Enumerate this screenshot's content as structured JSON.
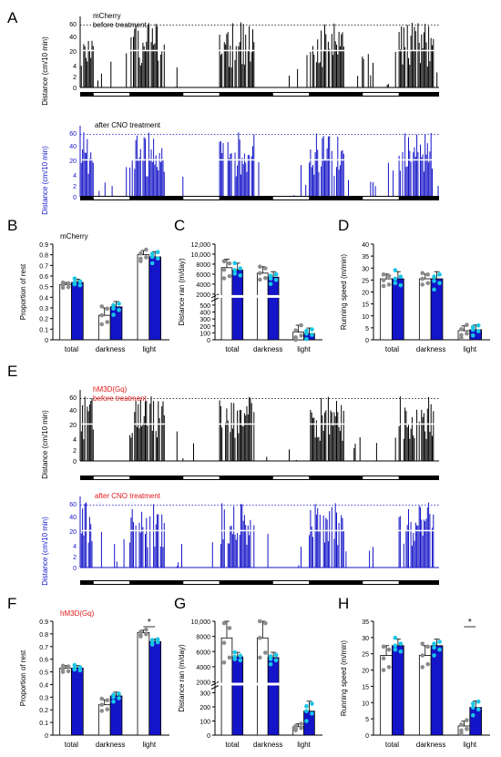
{
  "colors": {
    "black": "#000000",
    "blue": "#1414c8",
    "cyan": "#19c6e6",
    "gray": "#8c8c8c",
    "red": "#e01818"
  },
  "panels": {
    "A": "A",
    "B": "B",
    "C": "C",
    "D": "D",
    "E": "E",
    "F": "F",
    "G": "G",
    "H": "H"
  },
  "chart_data": [
    {
      "type": "area",
      "panel": "A",
      "ylabel": "Distance (cm/10 min)",
      "yticks": [
        "0",
        "2",
        "4",
        "20",
        "40",
        "60"
      ],
      "traces": [
        {
          "label": "mCherry",
          "label2": "before treatment",
          "color": "black"
        },
        {
          "label": "after CNO treatment",
          "label2": "",
          "color": "blue"
        }
      ],
      "light_dark_cycles": 4
    },
    {
      "type": "bar",
      "panel": "B",
      "label": "mCherry",
      "ylabel": "Proportion of rest",
      "categories": [
        "total",
        "darkness",
        "light"
      ],
      "ylim": [
        0,
        0.9
      ],
      "yticks": [
        "0",
        "0.1",
        "0.2",
        "0.3",
        "0.4",
        "0.5",
        "0.6",
        "0.7",
        "0.8",
        "0.9"
      ],
      "series": [
        {
          "values": [
            0.52,
            0.23,
            0.8
          ],
          "errors": [
            0.02,
            0.07,
            0.04
          ]
        },
        {
          "values": [
            0.54,
            0.31,
            0.78
          ],
          "errors": [
            0.03,
            0.05,
            0.05
          ]
        }
      ]
    },
    {
      "type": "bar",
      "panel": "C",
      "ylabel": "Distance ran (m/day)",
      "categories": [
        "total",
        "darkness",
        "light"
      ],
      "yticks_upper": [
        "2000",
        "4000",
        "6000",
        "8000",
        "10,000",
        "12,000"
      ],
      "yticks_lower": [
        "0",
        "100",
        "200",
        "300",
        "400",
        "500"
      ],
      "series": [
        {
          "values": [
            7300,
            6200,
            110
          ],
          "errors": [
            1700,
            1300,
            100
          ]
        },
        {
          "values": [
            6800,
            5400,
            90
          ],
          "errors": [
            1400,
            1100,
            80
          ]
        }
      ]
    },
    {
      "type": "bar",
      "panel": "D",
      "ylabel": "Running speed (m/min)",
      "categories": [
        "total",
        "darkness",
        "light"
      ],
      "ylim": [
        0,
        40
      ],
      "yticks": [
        "0",
        "5",
        "10",
        "15",
        "20",
        "25",
        "30",
        "35",
        "40"
      ],
      "series": [
        {
          "values": [
            25.5,
            25.5,
            3.8
          ],
          "errors": [
            2,
            2,
            2
          ]
        },
        {
          "values": [
            25.5,
            25.5,
            4.2
          ],
          "errors": [
            3,
            3,
            2
          ]
        }
      ]
    },
    {
      "type": "area",
      "panel": "E",
      "ylabel": "Distance (cm/10 min)",
      "yticks": [
        "0",
        "2",
        "4",
        "20",
        "40",
        "60"
      ],
      "traces": [
        {
          "label": "hM3D(Gq)",
          "label2": "before treatment",
          "color": "black"
        },
        {
          "label": "after CNO treatment",
          "label2": "",
          "color": "blue"
        }
      ],
      "light_dark_cycles": 4
    },
    {
      "type": "bar",
      "panel": "F",
      "label": "hM3D(Gq)",
      "ylabel": "Proportion of rest",
      "categories": [
        "total",
        "darkness",
        "light"
      ],
      "ylim": [
        0,
        0.9
      ],
      "yticks": [
        "0",
        "0.1",
        "0.2",
        "0.3",
        "0.4",
        "0.5",
        "0.6",
        "0.7",
        "0.8",
        "0.9"
      ],
      "significance": "*",
      "series": [
        {
          "values": [
            0.53,
            0.24,
            0.81
          ],
          "errors": [
            0.02,
            0.04,
            0.02
          ]
        },
        {
          "values": [
            0.53,
            0.31,
            0.74
          ],
          "errors": [
            0.02,
            0.03,
            0.02
          ]
        }
      ]
    },
    {
      "type": "bar",
      "panel": "G",
      "ylabel": "Distance ran (m/day)",
      "categories": [
        "total",
        "darkness",
        "light"
      ],
      "yticks_upper": [
        "2000",
        "4000",
        "6000",
        "8000",
        "10,000"
      ],
      "yticks_lower": [
        "0",
        "100",
        "200",
        "300"
      ],
      "series": [
        {
          "values": [
            7800,
            7800,
            60
          ],
          "errors": [
            2600,
            2600,
            20
          ]
        },
        {
          "values": [
            5300,
            5200,
            170
          ],
          "errors": [
            600,
            700,
            70
          ]
        }
      ]
    },
    {
      "type": "bar",
      "panel": "H",
      "ylabel": "Running speed (m/min)",
      "categories": [
        "total",
        "darkness",
        "light"
      ],
      "ylim": [
        0,
        35
      ],
      "yticks": [
        "0",
        "5",
        "10",
        "15",
        "20",
        "25",
        "30",
        "35"
      ],
      "significance": "*",
      "series": [
        {
          "values": [
            24.5,
            24.5,
            2.8
          ],
          "errors": [
            3,
            3,
            1.5
          ]
        },
        {
          "values": [
            27.5,
            27.5,
            8.5
          ],
          "errors": [
            2,
            2,
            2
          ]
        }
      ]
    }
  ]
}
